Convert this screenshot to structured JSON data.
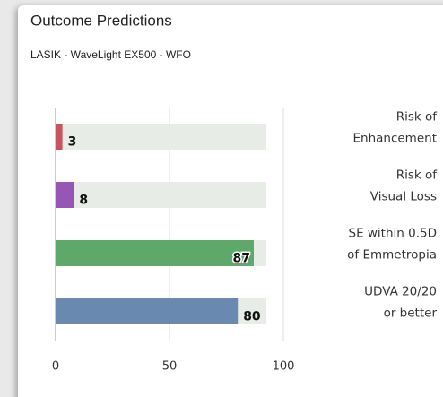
{
  "chart_data": {
    "type": "bar",
    "orientation": "horizontal",
    "title": "Outcome Predictions",
    "subtitle": "LASIK - WaveLight EX500 - WFO",
    "categories": [
      [
        "Risk of",
        "Enhancement"
      ],
      [
        "Risk of",
        "Visual Loss"
      ],
      [
        "SE within 0.5D",
        "of Emmetropia"
      ],
      [
        "UDVA 20/20",
        "or better"
      ]
    ],
    "values": [
      3,
      8,
      87,
      80
    ],
    "colors": [
      "#c9545f",
      "#9756b6",
      "#5ea86a",
      "#6a89b1"
    ],
    "xlim": [
      0,
      100
    ],
    "xticks": [
      0,
      50,
      100
    ],
    "grid": true
  }
}
